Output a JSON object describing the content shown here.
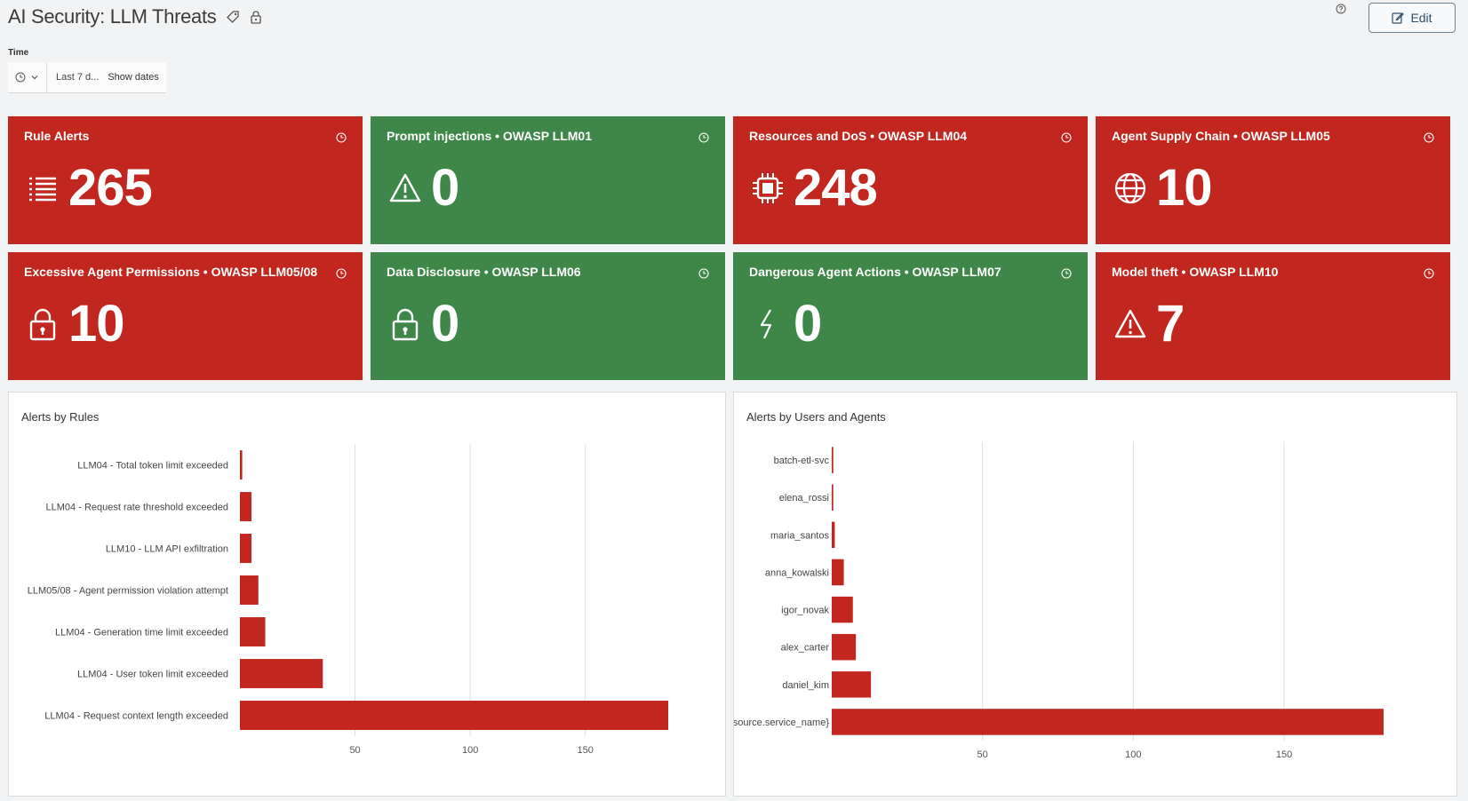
{
  "header": {
    "title": "AI Security: LLM Threats",
    "edit_label": "Edit",
    "icons": [
      "tag-icon",
      "lock-icon",
      "help-icon",
      "edit-icon"
    ]
  },
  "time": {
    "label": "Time",
    "range": "Last 7 d...",
    "show_dates": "Show dates"
  },
  "colors": {
    "alert": "#c1261f",
    "ok": "#3e8748",
    "bar": "#c1261f"
  },
  "tiles": [
    {
      "title": "Rule Alerts",
      "value": "265",
      "icon": "list-icon",
      "status": "red"
    },
    {
      "title": "Prompt injections • OWASP LLM01",
      "value": "0",
      "icon": "warning-icon",
      "status": "green"
    },
    {
      "title": "Resources and DoS • OWASP LLM04",
      "value": "248",
      "icon": "chip-icon",
      "status": "red"
    },
    {
      "title": "Agent Supply Chain • OWASP LLM05",
      "value": "10",
      "icon": "globe-icon",
      "status": "red"
    },
    {
      "title": "Excessive Agent Permissions • OWASP LLM05/08",
      "value": "10",
      "icon": "lock-icon",
      "status": "red"
    },
    {
      "title": "Data Disclosure • OWASP LLM06",
      "value": "0",
      "icon": "lock-icon",
      "status": "green"
    },
    {
      "title": "Dangerous Agent Actions • OWASP LLM07",
      "value": "0",
      "icon": "bolt-icon",
      "status": "green"
    },
    {
      "title": "Model theft • OWASP LLM10",
      "value": "7",
      "icon": "warning-icon",
      "status": "red"
    }
  ],
  "chart_data": [
    {
      "type": "bar",
      "orientation": "horizontal",
      "title": "Alerts by Rules",
      "categories": [
        "LLM04 - Total token limit exceeded",
        "LLM04 - Request rate threshold exceeded",
        "LLM10 - LLM API exfiltration",
        "LLM05/08 - Agent permission violation attempt",
        "LLM04 - Generation time limit exceeded",
        "LLM04 - User token limit exceeded",
        "LLM04 - Request context length exceeded"
      ],
      "values": [
        1,
        5,
        5,
        8,
        11,
        36,
        186
      ],
      "xticks": [
        50,
        100,
        150
      ],
      "xlim": [
        0,
        186
      ],
      "grid": true,
      "color": "#c1261f"
    },
    {
      "type": "bar",
      "orientation": "horizontal",
      "title": "Alerts by Users and Agents",
      "categories": [
        "batch-etl-svc",
        "elena_rossi",
        "maria_santos",
        "anna_kowalski",
        "igor_novak",
        "alex_carter",
        "daniel_kim",
        "{_source.service_name}"
      ],
      "values": [
        0.5,
        0.5,
        1,
        4,
        7,
        8,
        13,
        183
      ],
      "xticks": [
        50,
        100,
        150
      ],
      "xlim": [
        0,
        183
      ],
      "grid": true,
      "color": "#c1261f"
    }
  ]
}
